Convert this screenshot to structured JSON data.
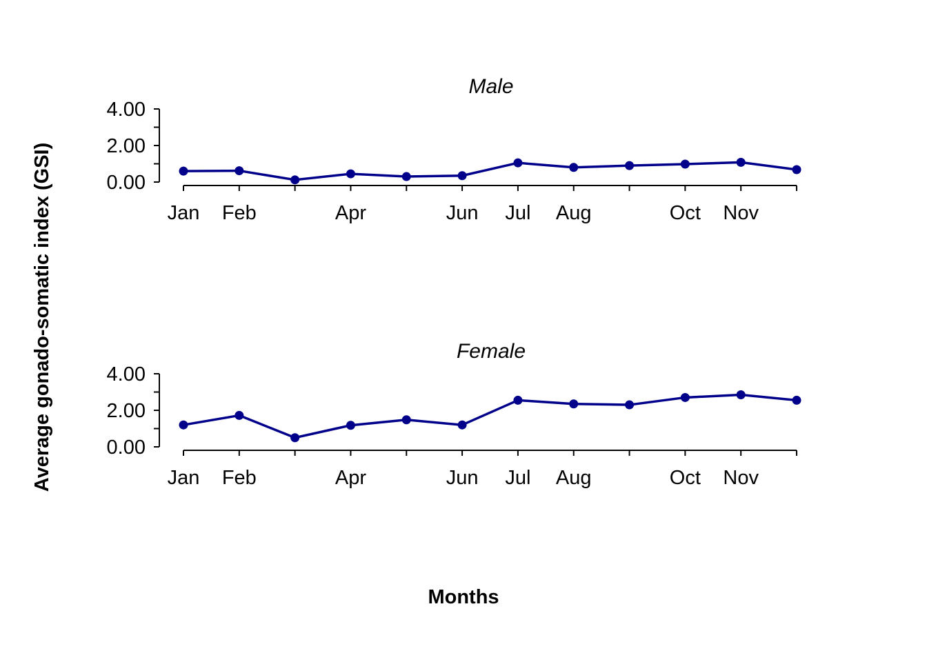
{
  "figure": {
    "ylabel": "Average gonado-somatic index (GSI)",
    "xlabel": "Months"
  },
  "colors": {
    "series": "#00008B",
    "axis": "#000000",
    "background": "#ffffff"
  },
  "chart_data": [
    {
      "type": "line",
      "title": "Male",
      "x": [
        1,
        2,
        3,
        4,
        5,
        6,
        7,
        8,
        9,
        10,
        11,
        12
      ],
      "x_ticks": [
        1,
        2,
        3,
        4,
        5,
        6,
        7,
        8,
        9,
        10,
        11,
        12
      ],
      "x_tick_labels": [
        "Jan",
        "Feb",
        "",
        "Apr",
        "",
        "Jun",
        "Jul",
        "Aug",
        "",
        "Oct",
        "Nov",
        ""
      ],
      "series": [
        {
          "values": [
            0.6,
            0.62,
            0.12,
            0.45,
            0.3,
            0.35,
            1.05,
            0.8,
            0.9,
            0.98,
            1.08,
            0.68
          ]
        }
      ],
      "y_ticks": [
        0,
        2,
        4
      ],
      "y_tick_labels": [
        "0.00",
        "2.00",
        "4.00"
      ],
      "ylim": [
        0,
        4
      ],
      "xlim": [
        1,
        12
      ],
      "grid": false,
      "legend": "none"
    },
    {
      "type": "line",
      "title": "Female",
      "x": [
        1,
        2,
        3,
        4,
        5,
        6,
        7,
        8,
        9,
        10,
        11,
        12
      ],
      "x_ticks": [
        1,
        2,
        3,
        4,
        5,
        6,
        7,
        8,
        9,
        10,
        11,
        12
      ],
      "x_tick_labels": [
        "Jan",
        "Feb",
        "",
        "Apr",
        "",
        "Jun",
        "Jul",
        "Aug",
        "",
        "Oct",
        "Nov",
        ""
      ],
      "series": [
        {
          "values": [
            1.2,
            1.72,
            0.5,
            1.18,
            1.48,
            1.2,
            2.55,
            2.35,
            2.3,
            2.7,
            2.85,
            2.55
          ]
        }
      ],
      "y_ticks": [
        0,
        2,
        4
      ],
      "y_tick_labels": [
        "0.00",
        "2.00",
        "4.00"
      ],
      "ylim": [
        0,
        4
      ],
      "xlim": [
        1,
        12
      ],
      "grid": false,
      "legend": "none"
    }
  ]
}
